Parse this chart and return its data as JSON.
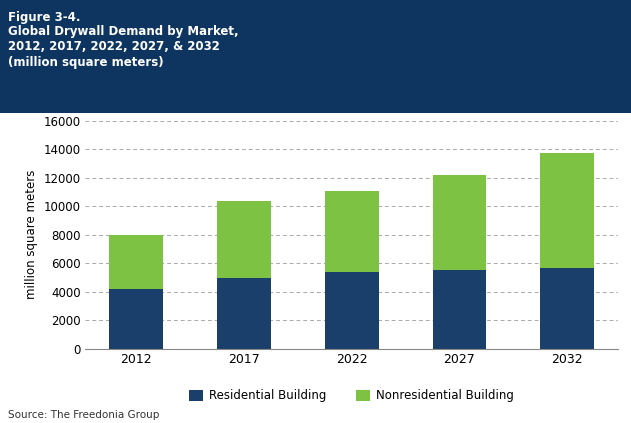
{
  "years": [
    "2012",
    "2017",
    "2022",
    "2027",
    "2032"
  ],
  "residential": [
    4200,
    5000,
    5400,
    5500,
    5700
  ],
  "nonresidential": [
    3800,
    5400,
    5700,
    6700,
    8000
  ],
  "residential_color": "#1b3f6b",
  "nonresidential_color": "#7dc243",
  "ylabel": "million square meters",
  "ylim": [
    0,
    16000
  ],
  "yticks": [
    0,
    2000,
    4000,
    6000,
    8000,
    10000,
    12000,
    14000,
    16000
  ],
  "legend_residential": "Residential Building",
  "legend_nonresidential": "Nonresidential Building",
  "source_text": "Source: The Freedonia Group",
  "header_bg_color": "#0e3460",
  "header_text_line1": "Figure 3-4.",
  "header_text_line2": "Global Drywall Demand by Market,",
  "header_text_line3": "2012, 2017, 2022, 2027, & 2032",
  "header_text_line4": "(million square meters)",
  "bar_width": 0.5,
  "grid_color": "#aaaaaa",
  "background_color": "#ffffff",
  "logo_blue": "#1b5fa8",
  "logo_cyan": "#3ab4d4",
  "logo_text_color": "#444444"
}
